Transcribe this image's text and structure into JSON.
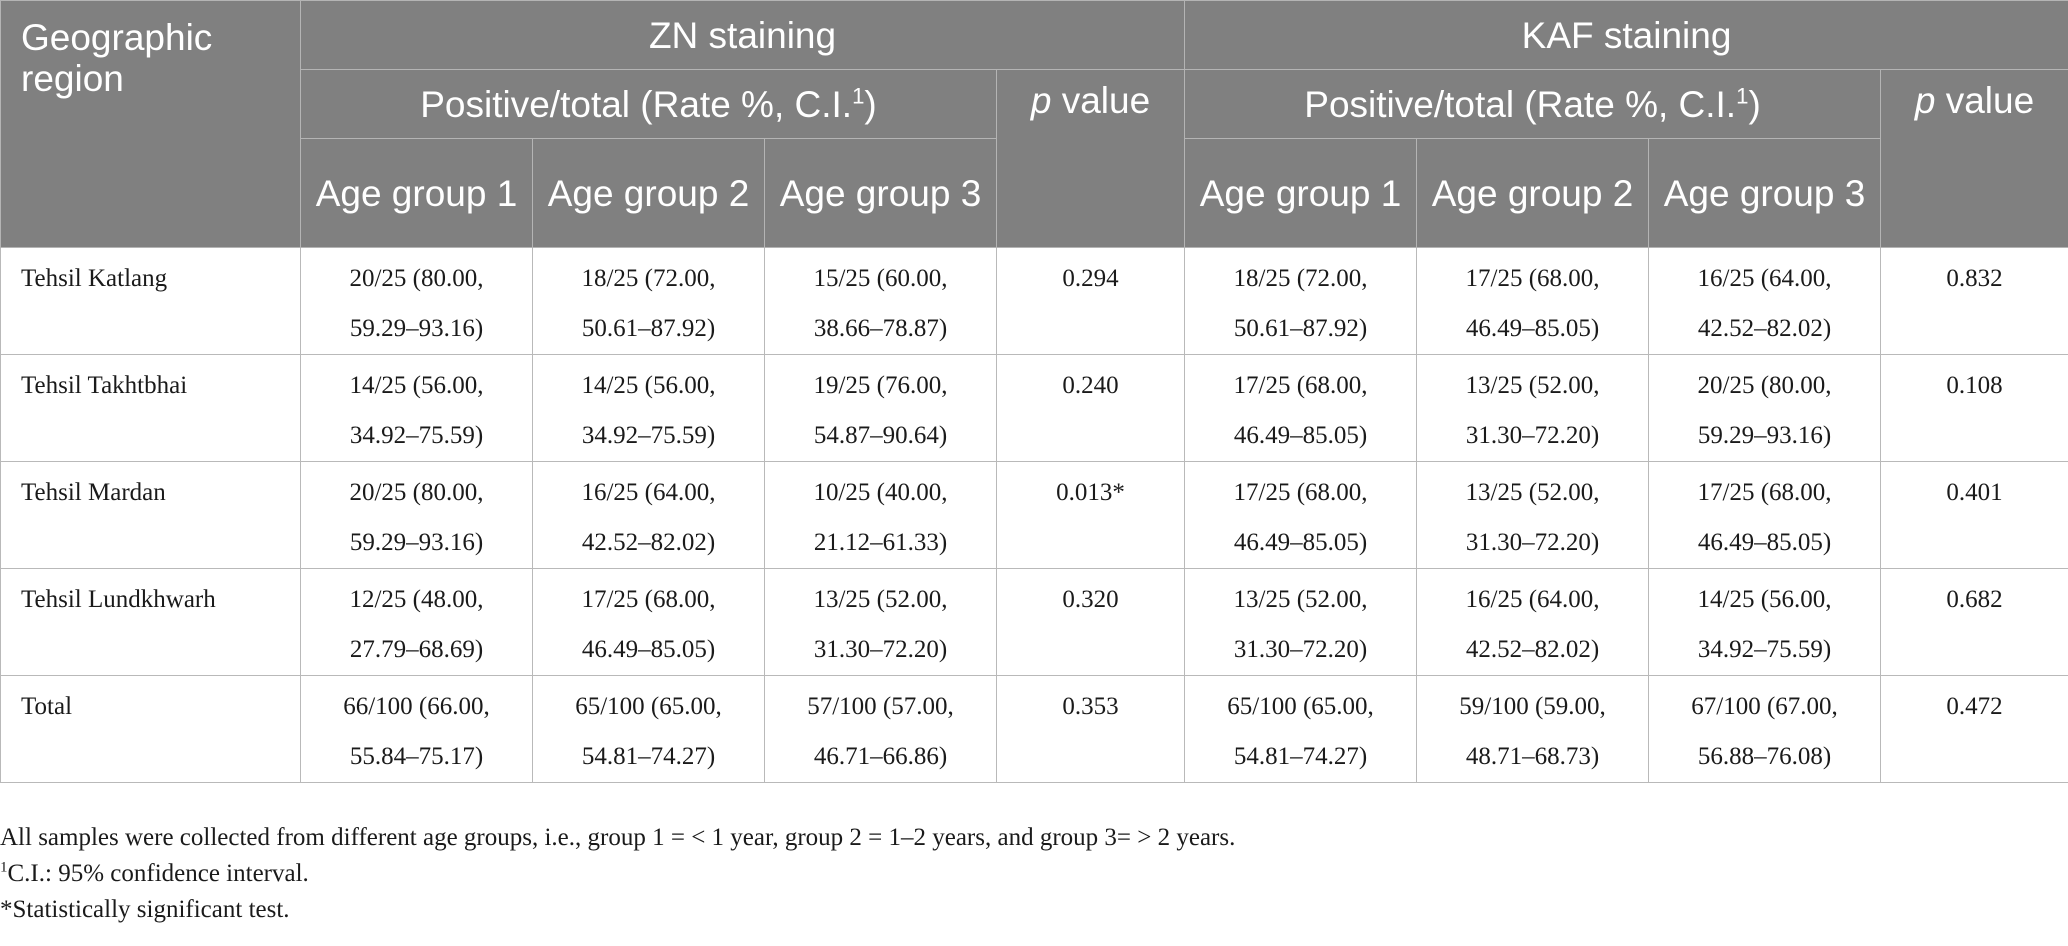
{
  "header": {
    "region": "Geographic region",
    "zn": "ZN staining",
    "kaf": "KAF staining",
    "positive_total": "Positive/total (Rate %, C.I.",
    "positive_total_sup": "1",
    "positive_total_close": ")",
    "p_letter": "p",
    "p_word": "value",
    "age_groups": [
      "Age group 1",
      "Age group 2",
      "Age group 3"
    ]
  },
  "rows": [
    {
      "region": "Tehsil Katlang",
      "zn": [
        [
          "20/25 (80.00,",
          "59.29–93.16)"
        ],
        [
          "18/25 (72.00,",
          "50.61–87.92)"
        ],
        [
          "15/25 (60.00,",
          "38.66–78.87)"
        ]
      ],
      "zn_p": "0.294",
      "kaf": [
        [
          "18/25 (72.00,",
          "50.61–87.92)"
        ],
        [
          "17/25 (68.00,",
          "46.49–85.05)"
        ],
        [
          "16/25 (64.00,",
          "42.52–82.02)"
        ]
      ],
      "kaf_p": "0.832"
    },
    {
      "region": "Tehsil Takhtbhai",
      "zn": [
        [
          "14/25 (56.00,",
          "34.92–75.59)"
        ],
        [
          "14/25 (56.00,",
          "34.92–75.59)"
        ],
        [
          "19/25 (76.00,",
          "54.87–90.64)"
        ]
      ],
      "zn_p": "0.240",
      "kaf": [
        [
          "17/25 (68.00,",
          "46.49–85.05)"
        ],
        [
          "13/25 (52.00,",
          "31.30–72.20)"
        ],
        [
          "20/25 (80.00,",
          "59.29–93.16)"
        ]
      ],
      "kaf_p": "0.108"
    },
    {
      "region": "Tehsil Mardan",
      "zn": [
        [
          "20/25 (80.00,",
          "59.29–93.16)"
        ],
        [
          "16/25 (64.00,",
          "42.52–82.02)"
        ],
        [
          "10/25 (40.00,",
          "21.12–61.33)"
        ]
      ],
      "zn_p": "0.013*",
      "kaf": [
        [
          "17/25 (68.00,",
          "46.49–85.05)"
        ],
        [
          "13/25 (52.00,",
          "31.30–72.20)"
        ],
        [
          "17/25 (68.00,",
          "46.49–85.05)"
        ]
      ],
      "kaf_p": "0.401"
    },
    {
      "region": "Tehsil Lundkhwarh",
      "zn": [
        [
          "12/25 (48.00,",
          "27.79–68.69)"
        ],
        [
          "17/25 (68.00,",
          "46.49–85.05)"
        ],
        [
          "13/25 (52.00,",
          "31.30–72.20)"
        ]
      ],
      "zn_p": "0.320",
      "kaf": [
        [
          "13/25 (52.00,",
          "31.30–72.20)"
        ],
        [
          "16/25 (64.00,",
          "42.52–82.02)"
        ],
        [
          "14/25 (56.00,",
          "34.92–75.59)"
        ]
      ],
      "kaf_p": "0.682"
    },
    {
      "region": "Total",
      "zn": [
        [
          "66/100 (66.00,",
          "55.84–75.17)"
        ],
        [
          "65/100 (65.00,",
          "54.81–74.27)"
        ],
        [
          "57/100 (57.00,",
          "46.71–66.86)"
        ]
      ],
      "zn_p": "0.353",
      "kaf": [
        [
          "65/100 (65.00,",
          "54.81–74.27)"
        ],
        [
          "59/100 (59.00,",
          "48.71–68.73)"
        ],
        [
          "67/100 (67.00,",
          "56.88–76.08)"
        ]
      ],
      "kaf_p": "0.472"
    }
  ],
  "footnotes": {
    "note1": "All samples were collected from different age groups, i.e., group 1 = < 1 year, group 2 = 1–2 years, and group 3= > 2 years.",
    "note2_sup": "1",
    "note2": "C.I.: 95% confidence interval.",
    "note3": "*Statistically significant test."
  }
}
